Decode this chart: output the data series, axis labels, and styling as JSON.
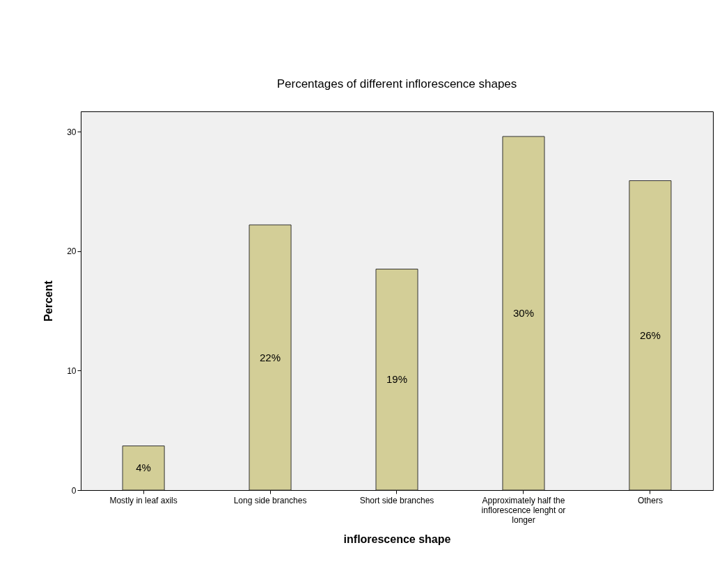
{
  "chart_data": {
    "type": "bar",
    "title": "Percentages of different inflorescence shapes",
    "xlabel": "inflorescence shape",
    "ylabel": "Percent",
    "categories": [
      "Mostly in leaf axils",
      "Long side branches",
      "Short side branches",
      "Approximately half the inflorescence lenght or longer",
      "Others"
    ],
    "values": [
      3.7,
      22.2,
      18.5,
      29.6,
      25.9
    ],
    "value_labels": [
      "4%",
      "22%",
      "19%",
      "30%",
      "26%"
    ],
    "color": "#d3ce97",
    "ylim": [
      0,
      31.7
    ],
    "yticks": [
      0,
      10,
      20,
      30
    ],
    "grid": false
  }
}
